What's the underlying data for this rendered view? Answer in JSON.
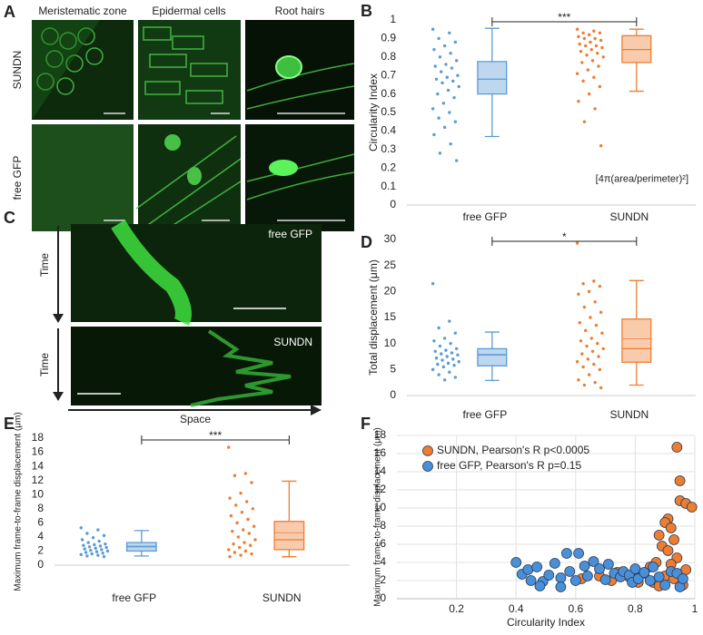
{
  "figure_a": {
    "panel": "A",
    "columns": [
      "Meristematic zone",
      "Epidermal cells",
      "Root hairs"
    ],
    "rows": [
      "SUNDN",
      "free GFP"
    ]
  },
  "figure_c": {
    "panel": "C",
    "kymographs": [
      "free GFP",
      "SUNDN"
    ],
    "time_labels": [
      "Time",
      "Time"
    ],
    "space_label": "Space"
  },
  "chart_data": [
    {
      "type": "box",
      "panel": "B",
      "ylabel": "Circularity Index",
      "annotation": "[4π(area/perimeter)²]",
      "significance": "***",
      "categories": [
        "free GFP",
        "SUNDN"
      ],
      "colors": [
        "#5b9bd5",
        "#ed7d31"
      ],
      "fills": [
        "#bdd7ee",
        "#f8cbad"
      ],
      "ylim": [
        0,
        1
      ],
      "yticks": [
        0,
        0.1,
        0.2,
        0.3,
        0.4,
        0.5,
        0.6,
        0.7,
        0.8,
        0.9,
        1
      ],
      "boxes": [
        {
          "whisker_low": 0.37,
          "q1": 0.6,
          "median": 0.68,
          "q3": 0.775,
          "whisker_high": 0.955
        },
        {
          "whisker_low": 0.615,
          "q1": 0.77,
          "median": 0.84,
          "q3": 0.915,
          "whisker_high": 0.95
        }
      ],
      "points": [
        [
          0.95,
          0.93,
          0.9,
          0.88,
          0.86,
          0.84,
          0.82,
          0.8,
          0.78,
          0.76,
          0.75,
          0.74,
          0.72,
          0.7,
          0.69,
          0.68,
          0.67,
          0.66,
          0.64,
          0.62,
          0.6,
          0.58,
          0.55,
          0.52,
          0.5,
          0.47,
          0.45,
          0.42,
          0.38,
          0.33,
          0.28,
          0.24
        ],
        [
          0.95,
          0.94,
          0.93,
          0.93,
          0.92,
          0.91,
          0.9,
          0.9,
          0.89,
          0.88,
          0.87,
          0.86,
          0.86,
          0.85,
          0.84,
          0.83,
          0.82,
          0.81,
          0.8,
          0.78,
          0.77,
          0.75,
          0.73,
          0.71,
          0.69,
          0.67,
          0.64,
          0.6,
          0.56,
          0.52,
          0.45,
          0.32
        ]
      ]
    },
    {
      "type": "box",
      "panel": "D",
      "ylabel": "Total displacement (μm)",
      "significance": "*",
      "categories": [
        "free GFP",
        "SUNDN"
      ],
      "colors": [
        "#5b9bd5",
        "#ed7d31"
      ],
      "fills": [
        "#bdd7ee",
        "#f8cbad"
      ],
      "ylim": [
        0,
        30
      ],
      "yticks": [
        0,
        5,
        10,
        15,
        20,
        25,
        30
      ],
      "boxes": [
        {
          "whisker_low": 2.9,
          "q1": 5.7,
          "median": 7.8,
          "q3": 9,
          "whisker_high": 12.2,
          "mean": 7.9
        },
        {
          "whisker_low": 2,
          "q1": 6.4,
          "median": 9,
          "q3": 14.7,
          "whisker_high": 22.1,
          "mean": 10.9
        }
      ],
      "points": [
        [
          21.5,
          14.3,
          13,
          12,
          11,
          10.5,
          10,
          9.5,
          9,
          8.7,
          8.5,
          8.2,
          8,
          7.8,
          7.5,
          7.2,
          7,
          6.8,
          6.5,
          6.2,
          6,
          5.8,
          5.5,
          5,
          4.5,
          4,
          3.5,
          3
        ],
        [
          29.3,
          22,
          21.5,
          21,
          20,
          19.5,
          18,
          17,
          16,
          15,
          14,
          13.5,
          12.5,
          12,
          11,
          10.5,
          10,
          9.5,
          9,
          8.5,
          8,
          7.5,
          7,
          6.5,
          6,
          5.5,
          5,
          4,
          3,
          2.5,
          2,
          1.5
        ]
      ]
    },
    {
      "type": "box",
      "panel": "E",
      "ylabel": "Maximum frame-to-frame displacement (μm)",
      "significance": "***",
      "categories": [
        "free GFP",
        "SUNDN"
      ],
      "colors": [
        "#5b9bd5",
        "#ed7d31"
      ],
      "fills": [
        "#bdd7ee",
        "#f8cbad"
      ],
      "ylim": [
        0,
        18
      ],
      "yticks": [
        0,
        2,
        4,
        6,
        8,
        10,
        12,
        14,
        16,
        18
      ],
      "boxes": [
        {
          "whisker_low": 1.3,
          "q1": 2.0,
          "median": 2.6,
          "q3": 3.2,
          "whisker_high": 4.9,
          "mean": 2.7
        },
        {
          "whisker_low": 1.2,
          "q1": 2.2,
          "median": 3.6,
          "q3": 6.2,
          "whisker_high": 11.9,
          "mean": 4.6
        }
      ],
      "points": [
        [
          5.3,
          5,
          4.5,
          4.2,
          3.9,
          3.6,
          3.4,
          3.2,
          3,
          2.9,
          2.8,
          2.7,
          2.6,
          2.5,
          2.4,
          2.3,
          2.2,
          2.1,
          2,
          1.9,
          1.8,
          1.7,
          1.6,
          1.5,
          1.4,
          1.3,
          1.2
        ],
        [
          16.7,
          13,
          12.7,
          11.7,
          10.2,
          9.5,
          9,
          8.5,
          8,
          7.5,
          7,
          6.5,
          6,
          5.5,
          5,
          4.8,
          4.5,
          4,
          3.6,
          3.2,
          3,
          2.8,
          2.5,
          2.2,
          2,
          1.8,
          1.6,
          1.4,
          1.2
        ]
      ]
    },
    {
      "type": "scatter",
      "panel": "F",
      "xlabel": "Circularity Index",
      "ylabel": "Maximum frame-to-frame displacement (μm)",
      "xlim": [
        0,
        1
      ],
      "xticks": [
        0.2,
        0.4,
        0.6,
        0.8,
        1
      ],
      "ylim": [
        0,
        18
      ],
      "yticks": [
        0,
        2,
        4,
        6,
        8,
        10,
        12,
        14,
        16,
        18
      ],
      "grid": true,
      "legend": "upper left",
      "series": [
        {
          "name": "SUNDN, Pearson's R p<0.0005",
          "color": "#ed7d31",
          "x": [
            0.94,
            0.95,
            0.95,
            0.97,
            0.99,
            0.91,
            0.9,
            0.92,
            0.88,
            0.93,
            0.89,
            0.91,
            0.94,
            0.87,
            0.92,
            0.85,
            0.8,
            0.83,
            0.9,
            0.78,
            0.93,
            0.72,
            0.86,
            0.62,
            0.68,
            0.96,
            0.81,
            0.74,
            0.88,
            0.97
          ],
          "values": [
            16.7,
            13,
            10.8,
            10.5,
            10.1,
            8.8,
            8.4,
            7.8,
            7,
            6.5,
            5.8,
            5.3,
            4.5,
            4,
            3.8,
            3.5,
            3.2,
            2.8,
            2.5,
            2.4,
            2.2,
            2,
            1.8,
            2.2,
            2.5,
            1.5,
            1.8,
            2.9,
            1.4,
            3.2
          ]
        },
        {
          "name": "free GFP, Pearson's R p=0.15",
          "color": "#4a90d9",
          "x": [
            0.4,
            0.42,
            0.44,
            0.45,
            0.47,
            0.49,
            0.51,
            0.53,
            0.55,
            0.57,
            0.58,
            0.6,
            0.61,
            0.63,
            0.64,
            0.66,
            0.68,
            0.7,
            0.71,
            0.73,
            0.75,
            0.76,
            0.78,
            0.79,
            0.8,
            0.81,
            0.83,
            0.85,
            0.86,
            0.88,
            0.9,
            0.92,
            0.94,
            0.95,
            0.96,
            0.55,
            0.48
          ],
          "values": [
            4,
            2.7,
            3.2,
            2,
            3.5,
            1.9,
            2.6,
            3.9,
            2.3,
            5,
            3,
            2,
            5,
            3.6,
            2.5,
            4.1,
            3.3,
            2.1,
            3.8,
            2.8,
            2.4,
            3,
            2.6,
            1.8,
            3.3,
            2.2,
            2.9,
            2,
            3.5,
            2.4,
            1.5,
            3,
            2.8,
            1.3,
            2.2,
            1.3,
            1.4
          ]
        }
      ]
    }
  ]
}
